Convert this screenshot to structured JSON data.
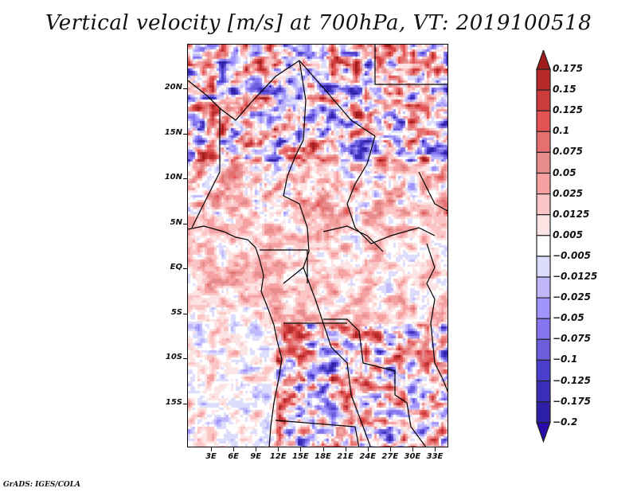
{
  "title": "Vertical velocity [m/s] at 700hPa, VT: 2019100518",
  "footer": "GrADS: IGES/COLA",
  "map": {
    "variable": "Vertical velocity",
    "units": "m/s",
    "level": "700hPa",
    "valid_time": "2019100518",
    "lon_range": [
      0,
      35
    ],
    "lat_range": [
      -20,
      24
    ],
    "lat_ticks": [
      {
        "value": 20,
        "label": "20N"
      },
      {
        "value": 15,
        "label": "15N"
      },
      {
        "value": 10,
        "label": "10N"
      },
      {
        "value": 5,
        "label": "5N"
      },
      {
        "value": 0,
        "label": "EQ"
      },
      {
        "value": -5,
        "label": "5S"
      },
      {
        "value": -10,
        "label": "10S"
      },
      {
        "value": -15,
        "label": "15S"
      }
    ],
    "lon_ticks": [
      {
        "value": 3,
        "label": "3E"
      },
      {
        "value": 6,
        "label": "6E"
      },
      {
        "value": 9,
        "label": "9E"
      },
      {
        "value": 12,
        "label": "12E"
      },
      {
        "value": 15,
        "label": "15E"
      },
      {
        "value": 18,
        "label": "18E"
      },
      {
        "value": 21,
        "label": "21E"
      },
      {
        "value": 24,
        "label": "24E"
      },
      {
        "value": 27,
        "label": "27E"
      },
      {
        "value": 30,
        "label": "30E"
      },
      {
        "value": 33,
        "label": "33E"
      }
    ]
  },
  "colorbar": {
    "levels": [
      {
        "label": "0.175",
        "color": "#a11c1c"
      },
      {
        "label": "0.15",
        "color": "#b82a2a"
      },
      {
        "label": "0.125",
        "color": "#cc3c3c"
      },
      {
        "label": "0.1",
        "color": "#e45353"
      },
      {
        "label": "0.075",
        "color": "#e67070"
      },
      {
        "label": "0.05",
        "color": "#e68c8c"
      },
      {
        "label": "0.025",
        "color": "#f6a1a1"
      },
      {
        "label": "0.0125",
        "color": "#fcc5c5"
      },
      {
        "label": "0.005",
        "color": "#fde4e4"
      },
      {
        "label": "-0.005",
        "color": "#ffffff"
      },
      {
        "label": "-0.0125",
        "color": "#dcdcfc"
      },
      {
        "label": "-0.025",
        "color": "#c1b8fc"
      },
      {
        "label": "-0.05",
        "color": "#a194fc"
      },
      {
        "label": "-0.075",
        "color": "#8575ee"
      },
      {
        "label": "-0.1",
        "color": "#6c5ddc"
      },
      {
        "label": "-0.125",
        "color": "#4a3fcc"
      },
      {
        "label": "-0.175",
        "color": "#3b2db8"
      },
      {
        "label": "-0.2",
        "color": "#2e20a6"
      }
    ],
    "over_color": "#a11c1c",
    "under_color": "#2a0aa8"
  }
}
